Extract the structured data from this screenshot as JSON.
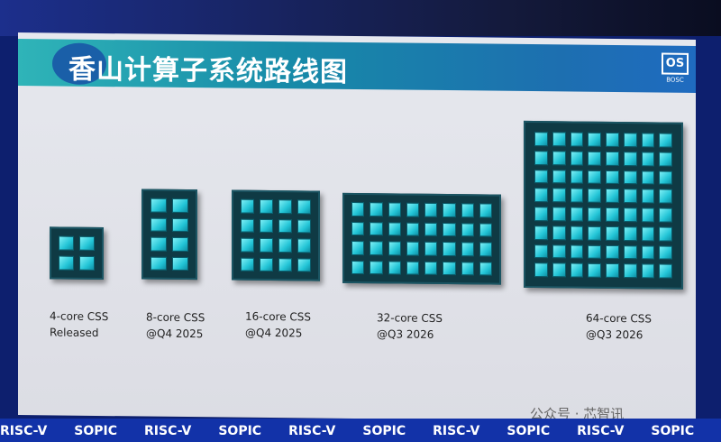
{
  "slide": {
    "title": "香山计算子系统路线图",
    "logo_text": "BOSC",
    "logo_mark": "OS",
    "chips": [
      {
        "label_line1": "4-core CSS",
        "label_line2": "Released",
        "cores": 4,
        "cols": 2,
        "rows": 2
      },
      {
        "label_line1": "8-core CSS",
        "label_line2": "@Q4 2025",
        "cores": 8,
        "cols": 2,
        "rows": 4
      },
      {
        "label_line1": "16-core CSS",
        "label_line2": "@Q4 2025",
        "cores": 16,
        "cols": 4,
        "rows": 4
      },
      {
        "label_line1": "32-core CSS",
        "label_line2": "@Q3 2026",
        "cores": 32,
        "cols": 8,
        "rows": 4
      },
      {
        "label_line1": "64-core CSS",
        "label_line2": "@Q3 2026",
        "cores": 64,
        "cols": 8,
        "rows": 8
      }
    ]
  },
  "footer": {
    "sponsors": [
      "RISC-V",
      "SOPIC",
      "RISC-V",
      "SOPIC",
      "RISC-V",
      "SOPIC",
      "RISC-V",
      "SOPIC",
      "RISC-V",
      "SOPIC"
    ]
  },
  "watermark": "公众号 · 芯智讯",
  "colors": {
    "core": "#22c4d6",
    "chip": "#0f3a44",
    "banner": "#178aa8",
    "backdrop": "#1232a8"
  }
}
